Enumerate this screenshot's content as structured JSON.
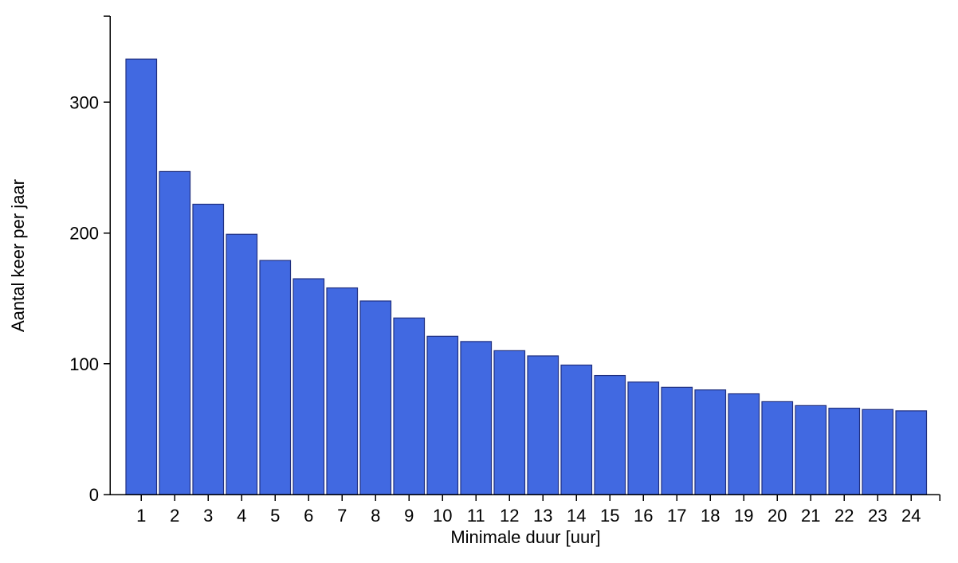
{
  "chart_data": {
    "type": "bar",
    "categories": [
      "1",
      "2",
      "3",
      "4",
      "5",
      "6",
      "7",
      "8",
      "9",
      "10",
      "11",
      "12",
      "13",
      "14",
      "15",
      "16",
      "17",
      "18",
      "19",
      "20",
      "21",
      "22",
      "23",
      "24"
    ],
    "values": [
      333,
      247,
      222,
      199,
      179,
      165,
      158,
      148,
      135,
      121,
      117,
      110,
      106,
      99,
      91,
      86,
      82,
      80,
      77,
      71,
      68,
      66,
      65,
      64
    ],
    "xlabel": "Minimale duur [uur]",
    "ylabel": "Aantal keer per jaar",
    "ylim": [
      0,
      366
    ],
    "yticks": [
      0,
      100,
      200,
      300
    ],
    "grid": false,
    "legend": "none",
    "colors": {
      "bar_fill": "#4169e1",
      "bar_stroke": "#1f2f80",
      "axis": "#000000"
    }
  }
}
